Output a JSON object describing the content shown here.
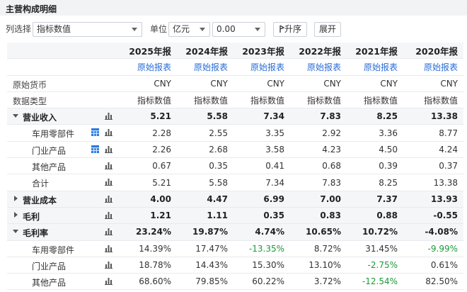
{
  "header": {
    "title": "主营构成明细"
  },
  "toolbar": {
    "column_label": "列选择",
    "column_value": "指标数值",
    "unit_label": "单位",
    "unit_value": "亿元",
    "precision_value": "0.00",
    "sort_button": "升序",
    "expand_button": "展开"
  },
  "table": {
    "columns": [
      "2025年报",
      "2024年报",
      "2023年报",
      "2022年报",
      "2021年报",
      "2020年报"
    ],
    "report_links": [
      "原始报表",
      "原始报表",
      "原始报表",
      "原始报表",
      "原始报表",
      "原始报表"
    ],
    "meta_rows": [
      {
        "label": "原始货币",
        "cells": [
          "CNY",
          "CNY",
          "CNY",
          "CNY",
          "CNY",
          "CNY"
        ]
      },
      {
        "label": "数据类型",
        "cells": [
          "指标数值",
          "指标数值",
          "指标数值",
          "指标数值",
          "指标数值",
          "指标数值"
        ]
      }
    ],
    "rows": [
      {
        "label": "营业收入",
        "level": "group",
        "state": "expanded",
        "cells": [
          "5.21",
          "5.58",
          "7.34",
          "7.83",
          "8.25",
          "13.38"
        ]
      },
      {
        "label": "车用零部件",
        "level": "item",
        "table_icon": true,
        "cells": [
          "2.28",
          "2.55",
          "3.35",
          "2.92",
          "3.36",
          "8.77"
        ]
      },
      {
        "label": "门业产品",
        "level": "item",
        "table_icon": true,
        "cells": [
          "2.26",
          "2.68",
          "3.58",
          "4.23",
          "4.50",
          "4.24"
        ]
      },
      {
        "label": "其他产品",
        "level": "item",
        "cells": [
          "0.67",
          "0.35",
          "0.41",
          "0.68",
          "0.39",
          "0.37"
        ]
      },
      {
        "label": "合计",
        "level": "item",
        "cells": [
          "5.21",
          "5.58",
          "7.34",
          "7.83",
          "8.25",
          "13.38"
        ]
      },
      {
        "label": "营业成本",
        "level": "group",
        "state": "collapsed",
        "cells": [
          "4.00",
          "4.47",
          "6.99",
          "7.00",
          "7.37",
          "13.93"
        ]
      },
      {
        "label": "毛利",
        "level": "group",
        "state": "collapsed",
        "cells": [
          "1.21",
          "1.11",
          "0.35",
          "0.83",
          "0.88",
          "-0.55"
        ]
      },
      {
        "label": "毛利率",
        "level": "group",
        "state": "expanded",
        "cells": [
          "23.24%",
          "19.87%",
          "4.74%",
          "10.65%",
          "10.72%",
          "-4.08%"
        ]
      },
      {
        "label": "车用零部件",
        "level": "item",
        "cells": [
          "14.39%",
          "17.47%",
          "-13.35%",
          "8.72%",
          "31.45%",
          "-9.99%"
        ]
      },
      {
        "label": "门业产品",
        "level": "item",
        "cells": [
          "18.78%",
          "14.43%",
          "15.30%",
          "13.10%",
          "-2.75%",
          "0.61%"
        ]
      },
      {
        "label": "其他产品",
        "level": "item",
        "cells": [
          "68.60%",
          "79.85%",
          "60.22%",
          "3.72%",
          "-12.54%",
          "82.50%"
        ]
      }
    ]
  }
}
